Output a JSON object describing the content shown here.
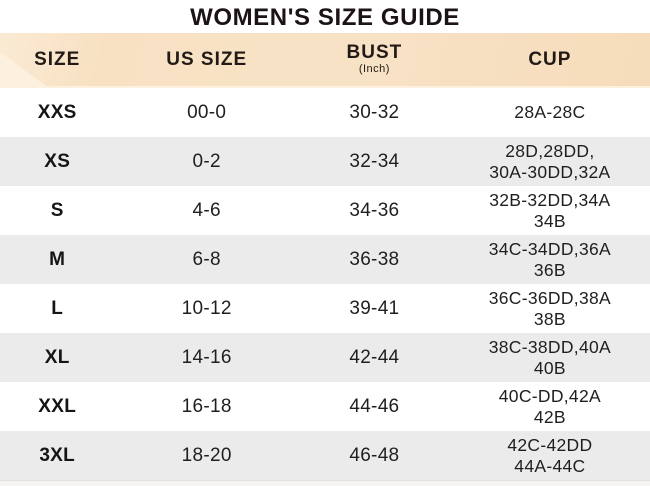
{
  "title": "WOMEN'S SIZE GUIDE",
  "table": {
    "columns": [
      {
        "label": "SIZE"
      },
      {
        "label": "US SIZE"
      },
      {
        "label": "BUST",
        "sub": "(Inch)"
      },
      {
        "label": "CUP"
      }
    ],
    "rows": [
      {
        "size": "XXS",
        "us_size": "00-0",
        "bust": "30-32",
        "cup": "28A-28C"
      },
      {
        "size": "XS",
        "us_size": "0-2",
        "bust": "32-34",
        "cup": "28D,28DD,\n30A-30DD,32A"
      },
      {
        "size": "S",
        "us_size": "4-6",
        "bust": "34-36",
        "cup": "32B-32DD,34A\n34B"
      },
      {
        "size": "M",
        "us_size": "6-8",
        "bust": "36-38",
        "cup": "34C-34DD,36A\n36B"
      },
      {
        "size": "L",
        "us_size": "10-12",
        "bust": "39-41",
        "cup": "36C-36DD,38A\n38B"
      },
      {
        "size": "XL",
        "us_size": "14-16",
        "bust": "42-44",
        "cup": "38C-38DD,40A\n40B"
      },
      {
        "size": "XXL",
        "us_size": "16-18",
        "bust": "44-46",
        "cup": "40C-DD,42A\n42B"
      },
      {
        "size": "3XL",
        "us_size": "18-20",
        "bust": "46-48",
        "cup": "42C-42DD\n44A-44C"
      }
    ]
  },
  "colors": {
    "header_band": "#f8e1c4",
    "header_band_light": "#fdf2e2",
    "alt_row": "#ebebeb",
    "row": "#ffffff",
    "text": "#1f1f1f",
    "title_text": "#1c1314"
  }
}
